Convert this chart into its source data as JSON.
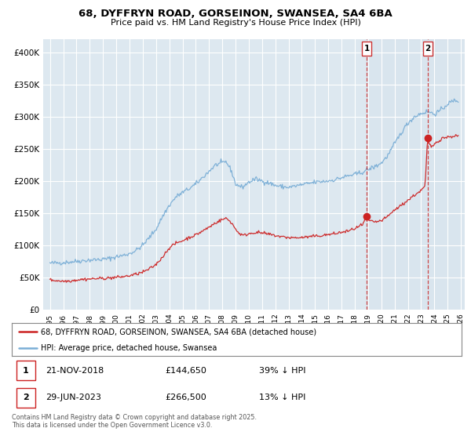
{
  "title": "68, DYFFRYN ROAD, GORSEINON, SWANSEA, SA4 6BA",
  "subtitle": "Price paid vs. HM Land Registry's House Price Index (HPI)",
  "bg_color": "#dde8f0",
  "hpi_color": "#7aaed6",
  "price_color": "#cc2222",
  "dashed_line_color": "#cc3333",
  "transaction_1_date": "21-NOV-2018",
  "transaction_1_price": 144650,
  "transaction_1_hpi_diff": "39% ↓ HPI",
  "transaction_1_year": 2018.89,
  "transaction_2_date": "29-JUN-2023",
  "transaction_2_price": 266500,
  "transaction_2_hpi_diff": "13% ↓ HPI",
  "transaction_2_year": 2023.49,
  "legend_label_red": "68, DYFFRYN ROAD, GORSEINON, SWANSEA, SA4 6BA (detached house)",
  "legend_label_blue": "HPI: Average price, detached house, Swansea",
  "footer": "Contains HM Land Registry data © Crown copyright and database right 2025.\nThis data is licensed under the Open Government Licence v3.0.",
  "ylim": [
    0,
    420000
  ],
  "xlim_start": 1994.5,
  "xlim_end": 2026.3,
  "yticks": [
    0,
    50000,
    100000,
    150000,
    200000,
    250000,
    300000,
    350000,
    400000
  ],
  "ytick_labels": [
    "£0",
    "£50K",
    "£100K",
    "£150K",
    "£200K",
    "£250K",
    "£300K",
    "£350K",
    "£400K"
  ],
  "xticks": [
    1995,
    1996,
    1997,
    1998,
    1999,
    2000,
    2001,
    2002,
    2003,
    2004,
    2005,
    2006,
    2007,
    2008,
    2009,
    2010,
    2011,
    2012,
    2013,
    2014,
    2015,
    2016,
    2017,
    2018,
    2019,
    2020,
    2021,
    2022,
    2023,
    2024,
    2025,
    2026
  ]
}
